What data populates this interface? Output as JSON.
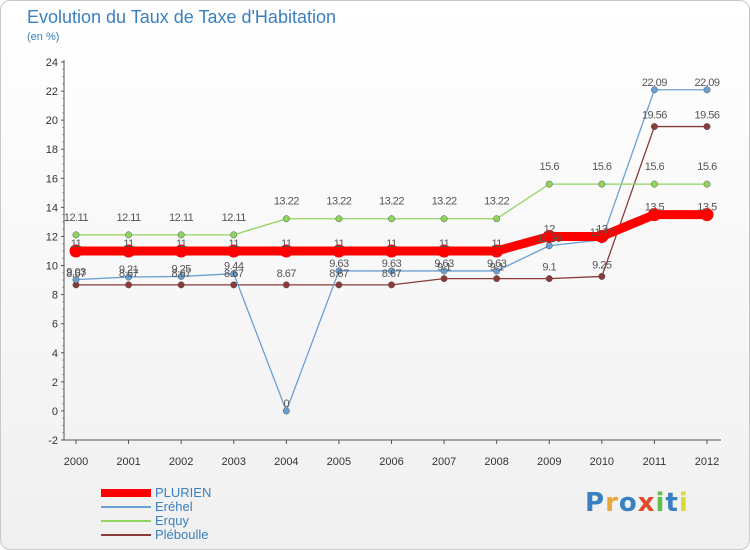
{
  "title": "Evolution du Taux de Taxe d'Habitation",
  "subtitle": "(en %)",
  "logo": {
    "letters": [
      "P",
      "r",
      "o",
      "x",
      "i",
      "t",
      "i"
    ],
    "colors": [
      "#3a7fbf",
      "#e8a93a",
      "#3a7fbf",
      "#e04a2a",
      "#5fbf4a",
      "#3a7fbf",
      "#d9d93a"
    ]
  },
  "chart_data": {
    "type": "line",
    "x": [
      "2000",
      "2001",
      "2002",
      "2003",
      "2004",
      "2005",
      "2006",
      "2007",
      "2008",
      "2009",
      "2010",
      "2011",
      "2012"
    ],
    "ylim": [
      -2,
      24
    ],
    "yticks": [
      -2,
      0,
      2,
      4,
      6,
      8,
      10,
      12,
      14,
      16,
      18,
      20,
      22,
      24
    ],
    "grid": false,
    "legend_position": "bottom-left",
    "series": [
      {
        "name": "PLURIEN",
        "color": "#ff0000",
        "values": [
          11,
          11,
          11,
          11,
          11,
          11,
          11,
          11,
          11,
          12,
          12,
          13.5,
          13.5
        ],
        "labels": [
          "11",
          "11",
          "11",
          "11",
          "11",
          "11",
          "11",
          "11",
          "11",
          "12",
          "12",
          "13.5",
          "13.5"
        ]
      },
      {
        "name": "Eréhel",
        "color": "#6a9fd4",
        "values": [
          9.03,
          9.21,
          9.25,
          9.44,
          0,
          9.63,
          9.63,
          9.63,
          9.63,
          11.36,
          11.77,
          22.09,
          22.09
        ],
        "labels": [
          "9.03",
          "9.21",
          "9.25",
          "9.44",
          "0",
          "9.63",
          "9.63",
          "9.63",
          "9.63",
          "11.36",
          "11.77",
          "22.09",
          "22.09"
        ]
      },
      {
        "name": "Erquy",
        "color": "#8fd45f",
        "values": [
          12.11,
          12.11,
          12.11,
          12.11,
          13.22,
          13.22,
          13.22,
          13.22,
          13.22,
          15.6,
          15.6,
          15.6,
          15.6
        ],
        "labels": [
          "12.11",
          "12.11",
          "12.11",
          "12.11",
          "13.22",
          "13.22",
          "13.22",
          "13.22",
          "13.22",
          "15.6",
          "15.6",
          "15.6",
          "15.6"
        ]
      },
      {
        "name": "Pléboulle",
        "color": "#8b3a3a",
        "values": [
          8.67,
          8.67,
          8.67,
          8.67,
          8.67,
          8.67,
          8.67,
          9.1,
          9.1,
          9.1,
          9.25,
          19.56,
          19.56
        ],
        "labels": [
          "8.67",
          "8.67",
          "8.67",
          "8.67",
          "8.67",
          "8.67",
          "8.67",
          "9.1",
          "9.1",
          "9.1",
          "9.25",
          "19.56",
          "19.56"
        ]
      }
    ]
  }
}
